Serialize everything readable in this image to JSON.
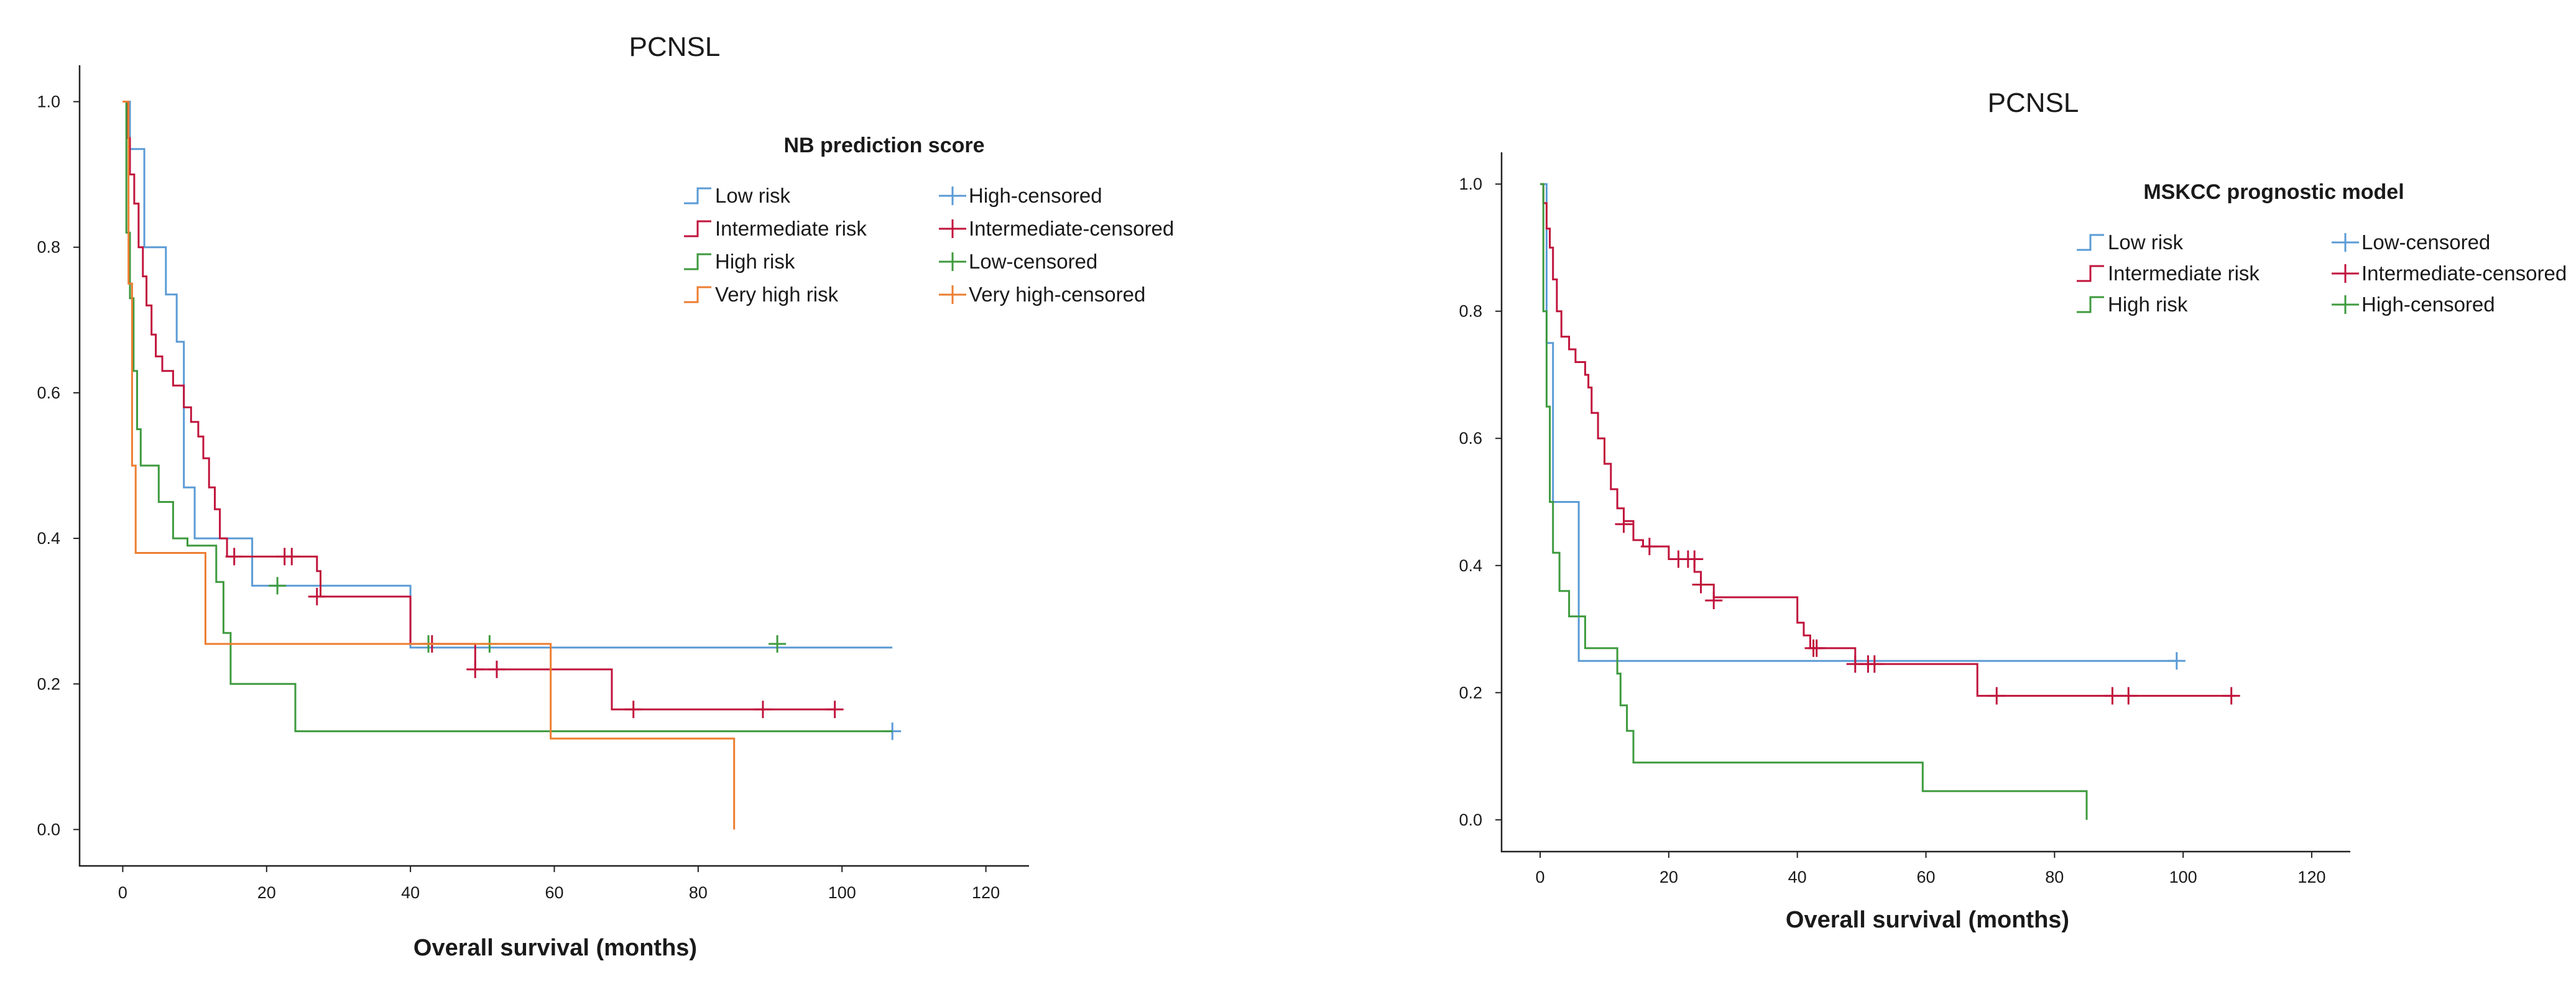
{
  "chart_data": [
    {
      "type": "line",
      "subtype": "kaplan-meier",
      "title": "PCNSL",
      "xlabel": "Overall survival (months)",
      "ylabel": "",
      "xlim": [
        -6,
        126
      ],
      "ylim": [
        -0.05,
        1.05
      ],
      "xticks": [
        0,
        20,
        40,
        60,
        80,
        100,
        120
      ],
      "yticks": [
        0.0,
        0.2,
        0.4,
        0.6,
        0.8,
        1.0
      ],
      "xtick_labels": [
        "0",
        "20",
        "40",
        "60",
        "80",
        "100",
        "120"
      ],
      "ytick_labels": [
        "0.0",
        "0.2",
        "0.4",
        "0.6",
        "0.8",
        "1.0"
      ],
      "legend_title": "NB prediction score",
      "legend_position": "top-right",
      "legend": {
        "lines": [
          "Low risk",
          "Intermediate risk",
          "High risk",
          "Very high risk"
        ],
        "censored": [
          "High-censored",
          "Intermediate-censored",
          "Low-censored",
          "Very high-censored"
        ],
        "censored_colors": [
          "#5b9bd5",
          "#c0143c",
          "#3e9a3e",
          "#ed7d31"
        ]
      },
      "series": [
        {
          "name": "Low risk",
          "color": "#5b9bd5",
          "steps": [
            [
              0,
              1.0
            ],
            [
              1,
              0.935
            ],
            [
              3,
              0.8
            ],
            [
              6,
              0.735
            ],
            [
              7.5,
              0.67
            ],
            [
              8.5,
              0.47
            ],
            [
              10,
              0.4
            ],
            [
              18,
              0.335
            ],
            [
              40,
              0.25
            ],
            [
              107,
              0.25
            ]
          ],
          "censored": [
            [
              107,
              0.135
            ]
          ]
        },
        {
          "name": "Intermediate risk",
          "color": "#c0143c",
          "steps": [
            [
              0,
              1.0
            ],
            [
              0.6,
              0.95
            ],
            [
              1,
              0.9
            ],
            [
              1.6,
              0.86
            ],
            [
              2.2,
              0.8
            ],
            [
              2.8,
              0.76
            ],
            [
              3.3,
              0.72
            ],
            [
              4,
              0.68
            ],
            [
              4.6,
              0.65
            ],
            [
              5.5,
              0.63
            ],
            [
              7,
              0.61
            ],
            [
              8.5,
              0.58
            ],
            [
              9.5,
              0.56
            ],
            [
              10.5,
              0.54
            ],
            [
              11.2,
              0.51
            ],
            [
              12,
              0.47
            ],
            [
              12.8,
              0.44
            ],
            [
              13.5,
              0.4
            ],
            [
              14.5,
              0.375
            ],
            [
              27,
              0.355
            ],
            [
              27.5,
              0.32
            ],
            [
              40,
              0.255
            ],
            [
              49,
              0.22
            ],
            [
              68,
              0.165
            ],
            [
              99,
              0.165
            ]
          ],
          "censored": [
            [
              15.5,
              0.375
            ],
            [
              22.5,
              0.375
            ],
            [
              23.5,
              0.375
            ],
            [
              27,
              0.32
            ],
            [
              43,
              0.255
            ],
            [
              49,
              0.22
            ],
            [
              52,
              0.22
            ],
            [
              71,
              0.165
            ],
            [
              89,
              0.165
            ],
            [
              99,
              0.165
            ]
          ]
        },
        {
          "name": "High risk",
          "color": "#3e9a3e",
          "steps": [
            [
              0,
              1.0
            ],
            [
              0.5,
              0.82
            ],
            [
              1,
              0.73
            ],
            [
              1.5,
              0.63
            ],
            [
              2,
              0.55
            ],
            [
              2.5,
              0.5
            ],
            [
              5,
              0.45
            ],
            [
              7,
              0.4
            ],
            [
              9,
              0.39
            ],
            [
              13,
              0.34
            ],
            [
              14,
              0.27
            ],
            [
              15,
              0.2
            ],
            [
              24,
              0.135
            ],
            [
              107,
              0.135
            ]
          ],
          "censored": [
            [
              21.5,
              0.335
            ],
            [
              42.5,
              0.255
            ],
            [
              51,
              0.255
            ],
            [
              91,
              0.255
            ]
          ]
        },
        {
          "name": "Very high risk",
          "color": "#ed7d31",
          "steps": [
            [
              0,
              1.0
            ],
            [
              0.8,
              0.75
            ],
            [
              1.3,
              0.5
            ],
            [
              1.8,
              0.38
            ],
            [
              11.5,
              0.255
            ],
            [
              59.5,
              0.125
            ],
            [
              85,
              0.125
            ],
            [
              85,
              0.0
            ]
          ],
          "censored": []
        }
      ]
    },
    {
      "type": "line",
      "subtype": "kaplan-meier",
      "title": "PCNSL",
      "xlabel": "Overall survival (months)",
      "ylabel": "",
      "xlim": [
        -6,
        126
      ],
      "ylim": [
        -0.05,
        1.05
      ],
      "xticks": [
        0,
        20,
        40,
        60,
        80,
        100,
        120
      ],
      "yticks": [
        0.0,
        0.2,
        0.4,
        0.6,
        0.8,
        1.0
      ],
      "xtick_labels": [
        "0",
        "20",
        "40",
        "60",
        "80",
        "100",
        "120"
      ],
      "ytick_labels": [
        "0.0",
        "0.2",
        "0.4",
        "0.6",
        "0.8",
        "1.0"
      ],
      "legend_title": "MSKCC prognostic model",
      "legend_position": "top-right",
      "legend": {
        "lines": [
          "Low risk",
          "Intermediate risk",
          "High risk"
        ],
        "censored": [
          "Low-censored",
          "Intermediate-censored",
          "High-censored"
        ],
        "censored_colors": [
          "#5b9bd5",
          "#c0143c",
          "#3e9a3e"
        ]
      },
      "series": [
        {
          "name": "Low risk",
          "color": "#5b9bd5",
          "steps": [
            [
              0,
              1.0
            ],
            [
              1,
              0.75
            ],
            [
              2,
              0.5
            ],
            [
              6,
              0.25
            ],
            [
              99,
              0.25
            ]
          ],
          "censored": [
            [
              99,
              0.25
            ]
          ]
        },
        {
          "name": "Intermediate risk",
          "color": "#c0143c",
          "steps": [
            [
              0,
              1.0
            ],
            [
              0.5,
              0.97
            ],
            [
              1,
              0.93
            ],
            [
              1.5,
              0.9
            ],
            [
              2,
              0.85
            ],
            [
              2.6,
              0.8
            ],
            [
              3.3,
              0.76
            ],
            [
              4.5,
              0.74
            ],
            [
              5.5,
              0.72
            ],
            [
              7,
              0.7
            ],
            [
              7.5,
              0.68
            ],
            [
              8,
              0.64
            ],
            [
              9,
              0.6
            ],
            [
              10,
              0.56
            ],
            [
              11,
              0.52
            ],
            [
              12,
              0.49
            ],
            [
              13,
              0.47
            ],
            [
              14.5,
              0.44
            ],
            [
              16,
              0.43
            ],
            [
              20,
              0.41
            ],
            [
              24,
              0.39
            ],
            [
              25,
              0.37
            ],
            [
              27,
              0.35
            ],
            [
              40,
              0.31
            ],
            [
              41,
              0.29
            ],
            [
              42,
              0.27
            ],
            [
              49,
              0.245
            ],
            [
              68,
              0.195
            ],
            [
              108,
              0.195
            ]
          ],
          "censored": [
            [
              13,
              0.465
            ],
            [
              17,
              0.43
            ],
            [
              21.5,
              0.41
            ],
            [
              23,
              0.41
            ],
            [
              24,
              0.41
            ],
            [
              25,
              0.37
            ],
            [
              27,
              0.345
            ],
            [
              42.5,
              0.27
            ],
            [
              43,
              0.27
            ],
            [
              49,
              0.245
            ],
            [
              51,
              0.245
            ],
            [
              52,
              0.245
            ],
            [
              71,
              0.195
            ],
            [
              89,
              0.195
            ],
            [
              91.5,
              0.195
            ],
            [
              107.5,
              0.195
            ]
          ]
        },
        {
          "name": "High risk",
          "color": "#3e9a3e",
          "steps": [
            [
              0,
              1.0
            ],
            [
              0.5,
              0.8
            ],
            [
              1,
              0.65
            ],
            [
              1.5,
              0.5
            ],
            [
              2,
              0.42
            ],
            [
              3,
              0.36
            ],
            [
              4.5,
              0.32
            ],
            [
              7,
              0.27
            ],
            [
              12,
              0.23
            ],
            [
              12.5,
              0.18
            ],
            [
              13.5,
              0.14
            ],
            [
              14.5,
              0.09
            ],
            [
              59.5,
              0.045
            ],
            [
              85,
              0.045
            ],
            [
              85,
              0.0
            ]
          ],
          "censored": []
        }
      ]
    }
  ]
}
